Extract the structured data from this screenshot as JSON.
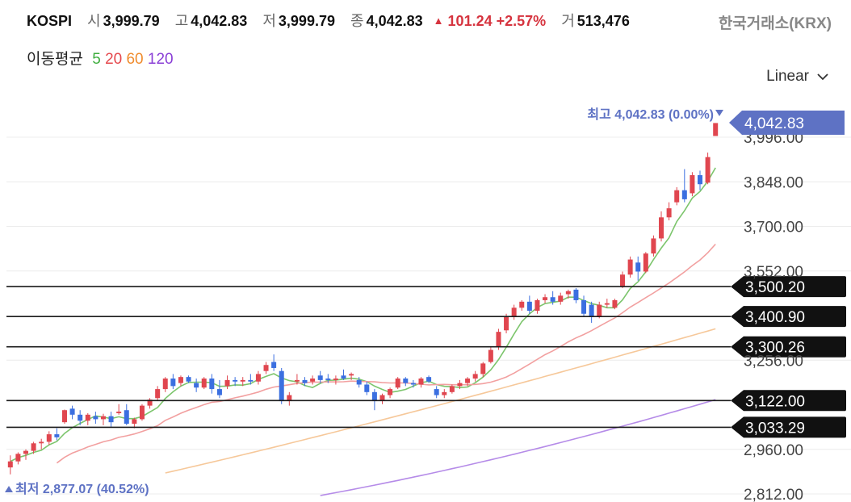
{
  "header": {
    "symbol": "KOSPI",
    "open_label": "시",
    "open": "3,999.79",
    "high_label": "고",
    "high": "4,042.83",
    "low_label": "저",
    "low": "3,999.79",
    "close_label": "종",
    "close": "4,042.83",
    "change": "101.24",
    "change_pct": "+2.57%",
    "volume_label": "거",
    "volume": "513,476",
    "exchange": "한국거래소(KRX)"
  },
  "moving_average": {
    "label": "이동평균",
    "periods": [
      {
        "period": "5",
        "color": "#3fae3f"
      },
      {
        "period": "20",
        "color": "#e5484d"
      },
      {
        "period": "60",
        "color": "#f08c2e"
      },
      {
        "period": "120",
        "color": "#8a3fd6"
      }
    ]
  },
  "scale_mode": "Linear",
  "colors": {
    "up": "#e0464f",
    "down": "#3b6fe0",
    "ma5": "#7cc56c",
    "ma20": "#f2a0a0",
    "ma60": "#f6c89a",
    "ma120": "#b58be8",
    "price_tag": "#5e72c4"
  },
  "chart_data": {
    "type": "candlestick",
    "y_axis_ticks": [
      "3,996.00",
      "3,848.00",
      "3,700.00",
      "3,552.00",
      "3,256.00",
      "2,960.00",
      "2,812.00"
    ],
    "y_tick_values": [
      3996,
      3848,
      3700,
      3552,
      3256,
      2960,
      2812
    ],
    "ylim": [
      2812,
      4040
    ],
    "max_label": "최고 4,042.83 (0.00%)",
    "min_label": "최저 2,877.07 (40.52%)",
    "max_value": 4042.83,
    "min_value": 2877.07,
    "current_price": {
      "value": 4042.83,
      "label": "4,042.83"
    },
    "horizontal_lines": [
      {
        "value": 3500.2,
        "label": "3,500.20"
      },
      {
        "value": 3400.9,
        "label": "3,400.90"
      },
      {
        "value": 3300.26,
        "label": "3,300.26"
      },
      {
        "value": 3122.0,
        "label": "3,122.00"
      },
      {
        "value": 3033.29,
        "label": "3,033.29"
      }
    ],
    "candles": [
      [
        2900,
        2940,
        2877,
        2920
      ],
      [
        2920,
        2950,
        2910,
        2945
      ],
      [
        2945,
        2960,
        2925,
        2955
      ],
      [
        2955,
        2985,
        2945,
        2980
      ],
      [
        2980,
        2995,
        2960,
        2985
      ],
      [
        2985,
        3020,
        2975,
        3010
      ],
      [
        3010,
        3030,
        2990,
        3000
      ],
      [
        3050,
        3092,
        3045,
        3090
      ],
      [
        3095,
        3105,
        3060,
        3075
      ],
      [
        3075,
        3090,
        3040,
        3055
      ],
      [
        3055,
        3080,
        3040,
        3075
      ],
      [
        3070,
        3085,
        3045,
        3060
      ],
      [
        3060,
        3078,
        3040,
        3070
      ],
      [
        3070,
        3085,
        3035,
        3050
      ],
      [
        3080,
        3110,
        3075,
        3085
      ],
      [
        3090,
        3110,
        3040,
        3045
      ],
      [
        3045,
        3065,
        3030,
        3060
      ],
      [
        3060,
        3110,
        3055,
        3105
      ],
      [
        3105,
        3130,
        3095,
        3125
      ],
      [
        3130,
        3170,
        3120,
        3160
      ],
      [
        3160,
        3200,
        3150,
        3195
      ],
      [
        3195,
        3210,
        3160,
        3170
      ],
      [
        3180,
        3205,
        3170,
        3200
      ],
      [
        3200,
        3205,
        3180,
        3185
      ],
      [
        3180,
        3195,
        3150,
        3165
      ],
      [
        3165,
        3200,
        3160,
        3195
      ],
      [
        3195,
        3210,
        3145,
        3160
      ],
      [
        3160,
        3190,
        3130,
        3140
      ],
      [
        3170,
        3205,
        3160,
        3190
      ],
      [
        3190,
        3200,
        3170,
        3185
      ],
      [
        3185,
        3200,
        3170,
        3190
      ],
      [
        3190,
        3210,
        3175,
        3185
      ],
      [
        3185,
        3220,
        3175,
        3210
      ],
      [
        3220,
        3250,
        3210,
        3240
      ],
      [
        3250,
        3275,
        3220,
        3230
      ],
      [
        3220,
        3230,
        3110,
        3120
      ],
      [
        3120,
        3150,
        3105,
        3140
      ],
      [
        3185,
        3210,
        3175,
        3190
      ],
      [
        3190,
        3200,
        3170,
        3180
      ],
      [
        3185,
        3205,
        3175,
        3195
      ],
      [
        3205,
        3220,
        3180,
        3190
      ],
      [
        3195,
        3210,
        3180,
        3190
      ],
      [
        3190,
        3205,
        3175,
        3195
      ],
      [
        3205,
        3225,
        3190,
        3195
      ],
      [
        3205,
        3215,
        3190,
        3210
      ],
      [
        3190,
        3200,
        3165,
        3175
      ],
      [
        3175,
        3185,
        3140,
        3150
      ],
      [
        3150,
        3160,
        3090,
        3120
      ],
      [
        3120,
        3145,
        3110,
        3140
      ],
      [
        3140,
        3165,
        3130,
        3160
      ],
      [
        3165,
        3200,
        3160,
        3195
      ],
      [
        3195,
        3200,
        3170,
        3180
      ],
      [
        3180,
        3190,
        3165,
        3175
      ],
      [
        3175,
        3200,
        3165,
        3195
      ],
      [
        3200,
        3205,
        3180,
        3185
      ],
      [
        3160,
        3170,
        3130,
        3140
      ],
      [
        3140,
        3160,
        3130,
        3150
      ],
      [
        3150,
        3175,
        3145,
        3170
      ],
      [
        3170,
        3190,
        3160,
        3180
      ],
      [
        3180,
        3200,
        3170,
        3195
      ],
      [
        3195,
        3220,
        3185,
        3210
      ],
      [
        3210,
        3250,
        3200,
        3245
      ],
      [
        3250,
        3300,
        3245,
        3290
      ],
      [
        3300,
        3360,
        3290,
        3350
      ],
      [
        3355,
        3410,
        3345,
        3400
      ],
      [
        3400,
        3440,
        3390,
        3430
      ],
      [
        3430,
        3455,
        3420,
        3450
      ],
      [
        3450,
        3470,
        3410,
        3420
      ],
      [
        3420,
        3460,
        3410,
        3455
      ],
      [
        3455,
        3475,
        3445,
        3465
      ],
      [
        3465,
        3485,
        3440,
        3450
      ],
      [
        3450,
        3480,
        3440,
        3470
      ],
      [
        3475,
        3490,
        3460,
        3485
      ],
      [
        3490,
        3495,
        3445,
        3455
      ],
      [
        3455,
        3470,
        3400,
        3410
      ],
      [
        3440,
        3450,
        3380,
        3400
      ],
      [
        3400,
        3450,
        3395,
        3440
      ],
      [
        3440,
        3460,
        3430,
        3445
      ],
      [
        3430,
        3460,
        3425,
        3455
      ],
      [
        3500,
        3550,
        3495,
        3540
      ],
      [
        3540,
        3600,
        3530,
        3590
      ],
      [
        3580,
        3600,
        3520,
        3550
      ],
      [
        3550,
        3615,
        3545,
        3610
      ],
      [
        3610,
        3670,
        3600,
        3660
      ],
      [
        3660,
        3750,
        3650,
        3730
      ],
      [
        3730,
        3780,
        3720,
        3760
      ],
      [
        3780,
        3830,
        3770,
        3820
      ],
      [
        3820,
        3890,
        3780,
        3790
      ],
      [
        3810,
        3880,
        3800,
        3870
      ],
      [
        3870,
        3885,
        3820,
        3840
      ],
      [
        3845,
        3945,
        3840,
        3930
      ],
      [
        4000,
        4043,
        4000,
        4043
      ]
    ],
    "ma5_end": 3905,
    "ma20_end": 3665,
    "ma60_end": 3360,
    "ma120_end": 3125
  }
}
